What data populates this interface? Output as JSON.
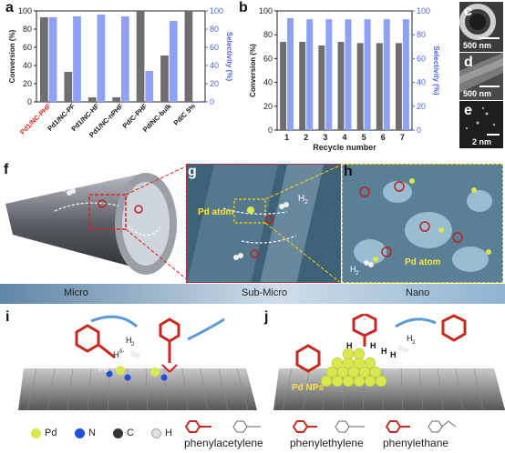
{
  "panels": {
    "a": "a",
    "b": "b",
    "c": "c",
    "d": "d",
    "e": "e",
    "f": "f",
    "g": "g",
    "h": "h",
    "i": "i",
    "j": "j"
  },
  "chart_data": [
    {
      "type": "bar",
      "panel": "a",
      "categories": [
        "Pd1/NC-PHF",
        "Pd1/NC-PF",
        "Pd1/NC-HF",
        "Pd1/NC-nPHF",
        "Pd/C-PHF",
        "Pd/NC-bulk",
        "Pd/C 5%"
      ],
      "category_colors": [
        "#e02020",
        "#111111",
        "#111111",
        "#111111",
        "#111111",
        "#111111",
        "#111111"
      ],
      "series": [
        {
          "name": "Conversion (%)",
          "axis": "left",
          "color": "#6e6e6e",
          "values": [
            93,
            33,
            5,
            5,
            100,
            51,
            100
          ]
        },
        {
          "name": "Selectivity (%)",
          "axis": "right",
          "color": "#8ea1f5",
          "values": [
            93,
            94,
            96,
            94,
            34,
            89,
            1
          ]
        }
      ],
      "ylabel": "Conversion (%)",
      "y2label": "Selectivity (%)",
      "ylim": [
        0,
        100
      ],
      "yticks": [
        0,
        20,
        40,
        60,
        80,
        100
      ],
      "y2ticks": [
        0,
        20,
        40,
        60,
        80,
        100
      ]
    },
    {
      "type": "bar",
      "panel": "b",
      "categories": [
        "1",
        "2",
        "3",
        "4",
        "5",
        "6",
        "7"
      ],
      "series": [
        {
          "name": "Conversion (%)",
          "axis": "left",
          "color": "#6e6e6e",
          "values": [
            74,
            74,
            71,
            74,
            73,
            73,
            73
          ]
        },
        {
          "name": "Selectivity (%)",
          "axis": "right",
          "color": "#8ea1f5",
          "values": [
            94,
            93,
            93,
            93,
            93,
            93,
            93
          ]
        }
      ],
      "xlabel": "Recycle number",
      "ylabel": "Conversion (%)",
      "y2label": "Selectivity (%)",
      "ylim": [
        0,
        100
      ],
      "yticks": [
        0,
        20,
        40,
        60,
        80,
        100
      ],
      "y2ticks": [
        0,
        20,
        40,
        60,
        80,
        100
      ]
    }
  ],
  "tem": {
    "c_scale": "500 nm",
    "d_scale": "500 nm",
    "e_scale": "2 nm"
  },
  "scheme": {
    "h2": "H",
    "h2_sub": "2",
    "pd_atom_g": "Pd atom",
    "pd_atom_h": "Pd atom",
    "pd_delta": "Pd",
    "pd_delta_sup": "δ+",
    "h_delta": "H",
    "h_delta_sup": "δ-",
    "h": "H",
    "pd_nps": "Pd NPs",
    "scale_bar": {
      "micro": "Micro",
      "submicro": "Sub-Micro",
      "nano": "Nano"
    }
  },
  "legend": {
    "pd": "Pd",
    "n": "N",
    "c": "C",
    "h": "H",
    "phenylacetylene": "phenylacetylene",
    "phenylethylene": "phenylethylene",
    "phenylethane": "phenylethane",
    "colors": {
      "pd": "#d8e84c",
      "n": "#1d4fd8",
      "c": "#333333",
      "h": "#e0e0e0"
    }
  }
}
